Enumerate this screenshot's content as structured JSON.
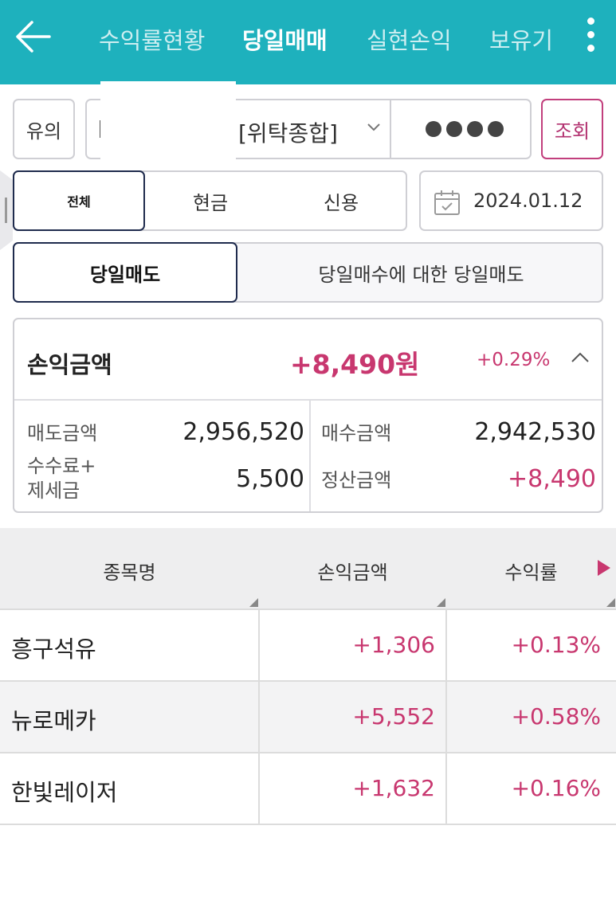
{
  "header": {
    "tabs": [
      {
        "label": "수익률현황"
      },
      {
        "label": "당일매매"
      },
      {
        "label": "실현손익"
      },
      {
        "label": "보유기"
      }
    ]
  },
  "toolbar": {
    "warn_label": "유의",
    "account_type": "[위탁종합]",
    "query_label": "조회"
  },
  "filter": {
    "segments": [
      "전체",
      "현금",
      "신용"
    ],
    "date": "2024.01.12"
  },
  "mode": {
    "options": [
      "당일매도",
      "당일매수에 대한 당일매도"
    ]
  },
  "summary": {
    "pl_label": "손익금액",
    "pl_amount": "+8,490원",
    "pl_rate": "+0.29%",
    "sell_label": "매도금액",
    "sell_value": "2,956,520",
    "buy_label": "매수금액",
    "buy_value": "2,942,530",
    "fee_label_1": "수수료+",
    "fee_label_2": "제세금",
    "fee_value": "5,500",
    "settle_label": "정산금액",
    "settle_value": "+8,490"
  },
  "table": {
    "headers": [
      "종목명",
      "손익금액",
      "수익률"
    ],
    "rows": [
      {
        "name": "흥구석유",
        "pl": "+1,306",
        "rate": "+0.13%"
      },
      {
        "name": "뉴로메카",
        "pl": "+5,552",
        "rate": "+0.58%"
      },
      {
        "name": "한빛레이저",
        "pl": "+1,632",
        "rate": "+0.16%"
      }
    ]
  },
  "colors": {
    "header_bg": "#1eb1bd",
    "accent_pink": "#c8376f",
    "active_border": "#1f2b4d"
  }
}
